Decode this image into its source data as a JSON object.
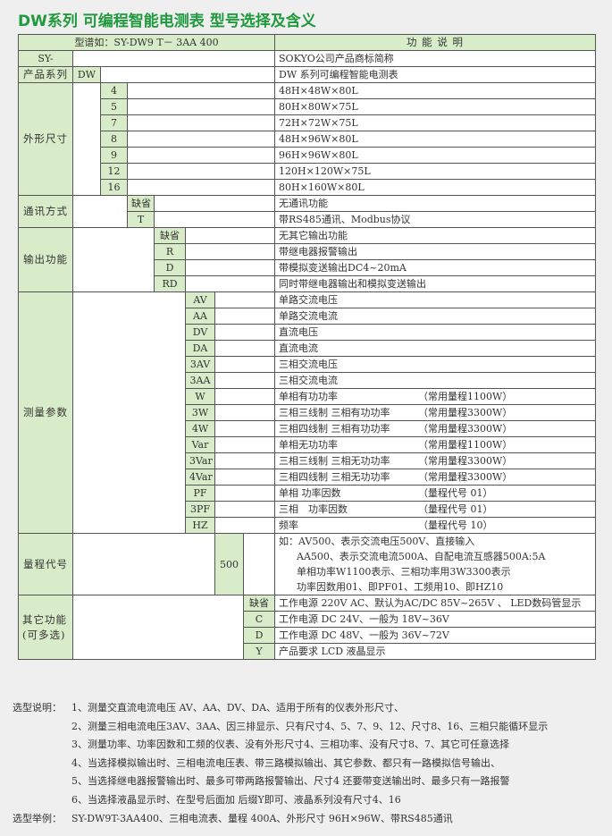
{
  "title": "DW系列 可编程智能电测表 型号选择及含义",
  "header": {
    "model_label": "型谱如：SY-DW9 T－ 3AA 400",
    "function_label": "功 能 说 明"
  },
  "brand": {
    "label": "SY-",
    "desc": "SOKYO公司产品商标简称"
  },
  "series": {
    "label": "产品系列",
    "code": "DW",
    "desc": "DW 系列可编程智能电测表"
  },
  "size": {
    "label": "外形尺寸",
    "items": [
      {
        "code": "4",
        "desc": "48H×48W×80L"
      },
      {
        "code": "5",
        "desc": "80H×80W×75L"
      },
      {
        "code": "7",
        "desc": "72H×72W×75L"
      },
      {
        "code": "8",
        "desc": "48H×96W×80L"
      },
      {
        "code": "9",
        "desc": "96H×96W×80L"
      },
      {
        "code": "12",
        "desc": "120H×120W×75L"
      },
      {
        "code": "16",
        "desc": "80H×160W×80L"
      }
    ]
  },
  "comm": {
    "label": "通讯方式",
    "items": [
      {
        "code": "缺省",
        "desc": "无通讯功能"
      },
      {
        "code": "T",
        "desc": "带RS485通讯、Modbus协议"
      }
    ]
  },
  "output": {
    "label": "输出功能",
    "items": [
      {
        "code": "缺省",
        "desc": "无其它输出功能"
      },
      {
        "code": "R",
        "desc": "带继电器报警输出"
      },
      {
        "code": "D",
        "desc": "带模拟变送输出DC4~20mA"
      },
      {
        "code": "RD",
        "desc": "同时带继电器输出和模拟变送输出"
      }
    ]
  },
  "measure": {
    "label": "测量参数",
    "items": [
      {
        "code": "AV",
        "desc": "单路交流电压",
        "note": ""
      },
      {
        "code": "AA",
        "desc": "单路交流电流",
        "note": ""
      },
      {
        "code": "DV",
        "desc": "直流电压",
        "note": ""
      },
      {
        "code": "DA",
        "desc": "直流电流",
        "note": ""
      },
      {
        "code": "3AV",
        "desc": "三相交流电压",
        "note": ""
      },
      {
        "code": "3AA",
        "desc": "三相交流电流",
        "note": ""
      },
      {
        "code": "W",
        "desc": "单相有功功率",
        "note": "（常用量程1100W）"
      },
      {
        "code": "3W",
        "desc": "三相三线制 三相有功功率",
        "note": "（常用量程3300W）"
      },
      {
        "code": "4W",
        "desc": "三相四线制 三相有功功率",
        "note": "（常用量程3300W）"
      },
      {
        "code": "Var",
        "desc": "单相无功功率",
        "note": "（常用量程1100W）"
      },
      {
        "code": "3Var",
        "desc": "三相三线制 三相无功功率",
        "note": "（常用量程3300W）"
      },
      {
        "code": "4Var",
        "desc": "三相四线制 三相无功功率",
        "note": "（常用量程3300W）"
      },
      {
        "code": "PF",
        "desc": "单相 功率因数",
        "note": "（量程代号 01）"
      },
      {
        "code": "3PF",
        "desc": "三相　功率因数",
        "note": "（量程代号 01）"
      },
      {
        "code": "HZ",
        "desc": "频率",
        "note": "（量程代号 10）"
      }
    ]
  },
  "range": {
    "label": "量程代号",
    "code": "500",
    "lines": [
      "如：AV500、表示交流电压500V、直接输入",
      "AA500、表示交流电流500A、自配电流互感器500A:5A",
      "单相功率W1100表示、三相功率用3W3300表示",
      "功率因数用01、即PF01、工频用10、即HZ10"
    ]
  },
  "other": {
    "label": "其它功能",
    "sublabel": "(可多选)",
    "items": [
      {
        "code": "缺省",
        "desc": "工作电源 220V AC、默认为AC/DC 85V~265V 、 LED数码管显示"
      },
      {
        "code": "C",
        "desc": "工作电源 DC 24V、一般为 18V~36V"
      },
      {
        "code": "D",
        "desc": "工作电源 DC 48V、一般为 36V~72V"
      },
      {
        "code": "Y",
        "desc": "产品要求 LCD 液晶显示"
      }
    ]
  },
  "notes": {
    "label": "选型说明：",
    "items": [
      "1、测量交直流电流电压 AV、AA、DV、DA、适用于所有的仪表外形尺寸、",
      "2、测量三相电流电压3AV、3AA、因三排显示、只有尺寸4、5、7、9、12、尺寸8、16、三相只能循环显示",
      "3、测量功率、功率因数和工频的仪表、没有外形尺寸4、三相功率、没有尺寸8、7、其它可任意选择",
      "4、当选择模拟输出时、三相电流电压表、带三路模拟输出、其它参数、都只有一路模拟信号输出、",
      "5、当选择继电器报警输出时、最多可带两路报警输出、尺寸4 还要带变送输出时、最多只有一路报警",
      "6、当选择液晶显示时、在型号后面加 后缀Y即可、液晶系列没有尺寸4、16"
    ],
    "example_label": "选型举例：",
    "example": "SY-DW9T-3AA400、三相电流表、量程 400A、外形尺寸 96H×96W、带RS485通讯"
  },
  "colors": {
    "title": "#1f9a3c",
    "cell_green": "#d9ecc9",
    "border": "#555555",
    "background": "#efefef"
  }
}
